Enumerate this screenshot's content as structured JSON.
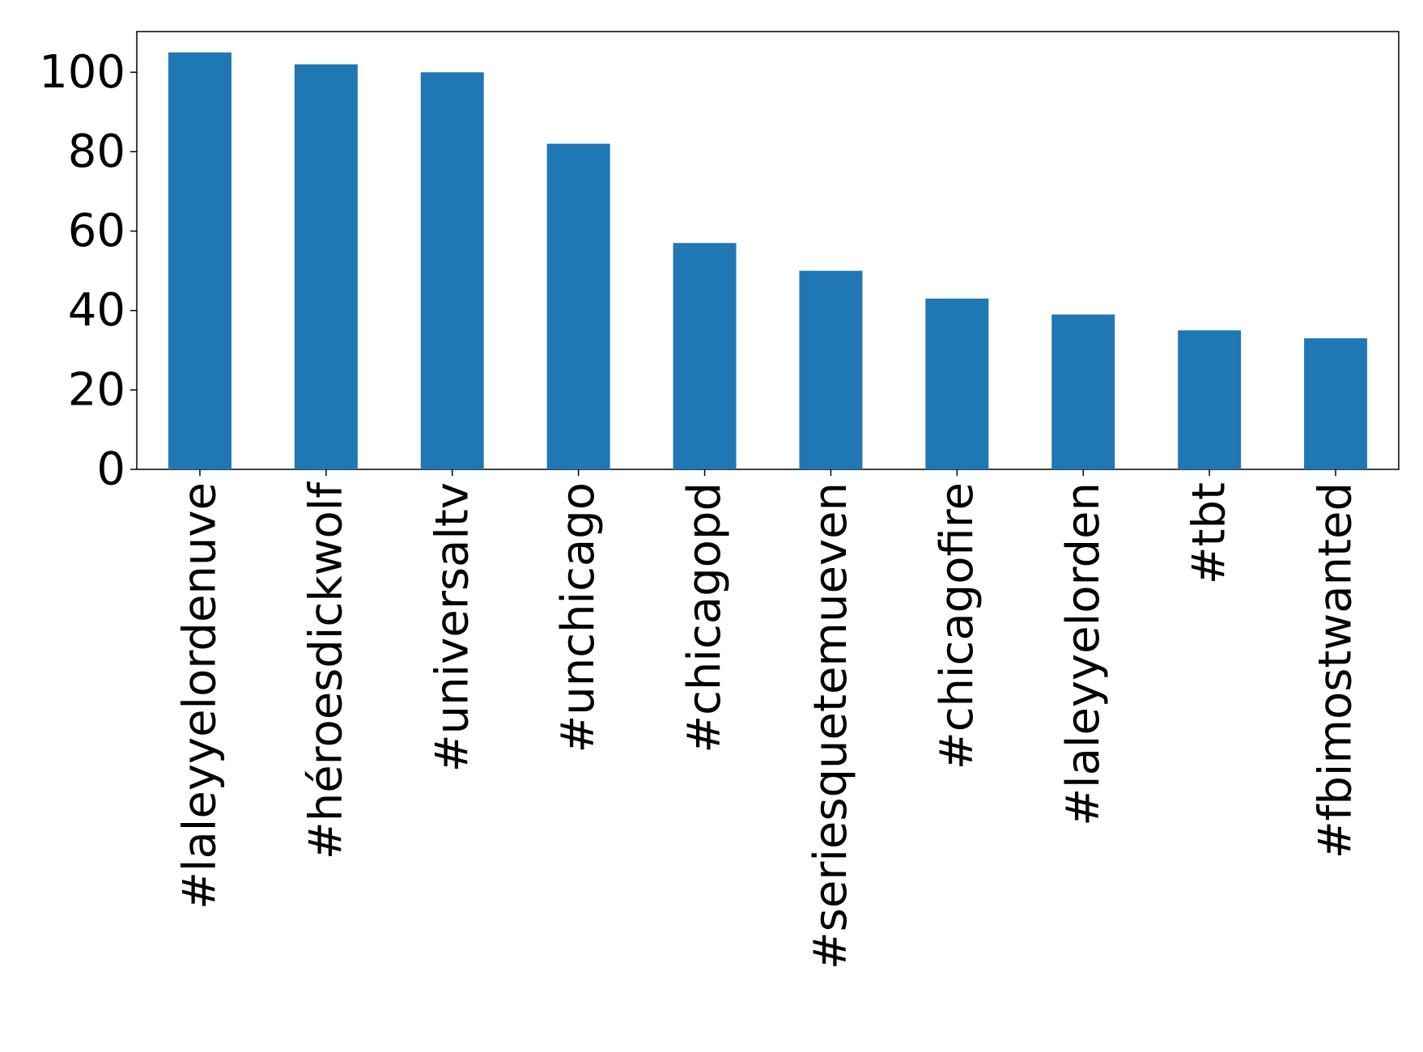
{
  "chart_data": {
    "type": "bar",
    "categories": [
      "#laleyyelordenuve",
      "#héroesdickwolf",
      "#universaltv",
      "#unchicago",
      "#chicagopd",
      "#seriesquetemueven",
      "#chicagofire",
      "#laleyyelorden",
      "#tbt",
      "#fbimostwanted"
    ],
    "values": [
      105,
      102,
      100,
      82,
      57,
      50,
      43,
      39,
      35,
      33
    ],
    "color": "#1f77b4",
    "ylim": [
      0,
      110.25
    ],
    "yticks": [
      0,
      20,
      40,
      60,
      80,
      100
    ],
    "grid": false
  }
}
